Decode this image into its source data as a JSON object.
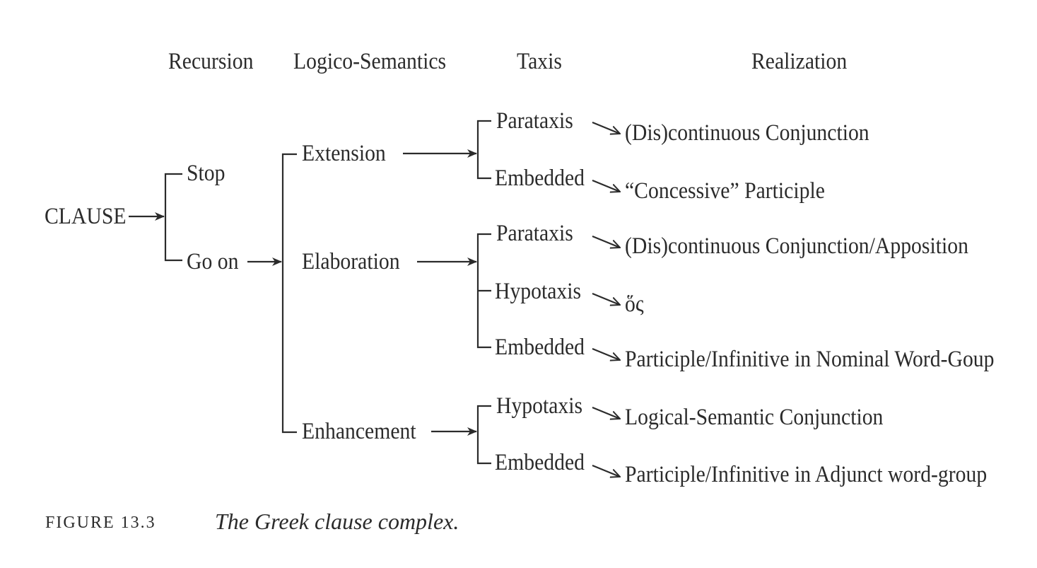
{
  "headers": {
    "recursion": "Recursion",
    "logico_semantics": "Logico-Semantics",
    "taxis": "Taxis",
    "realization": "Realization"
  },
  "nodes": {
    "clause": "CLAUSE",
    "stop": "Stop",
    "go_on": "Go on",
    "extension": "Extension",
    "elaboration": "Elaboration",
    "enhancement": "Enhancement",
    "ext_parataxis": "Parataxis",
    "ext_embedded": "Embedded",
    "elab_parataxis": "Parataxis",
    "elab_hypotaxis": "Hypotaxis",
    "elab_embedded": "Embedded",
    "enh_hypotaxis": "Hypotaxis",
    "enh_embedded": "Embedded"
  },
  "realizations": {
    "ext_parataxis": "(Dis)continuous Conjunction",
    "ext_embedded": "“Concessive” Participle",
    "elab_parataxis": "(Dis)continuous Conjunction/Apposition",
    "elab_hypotaxis": "ὅς",
    "elab_embedded": "Participle/Infinitive in Nominal Word-Goup",
    "enh_hypotaxis": "Logical-Semantic Conjunction",
    "enh_embedded": "Participle/Infinitive in Adjunct word-group"
  },
  "caption": {
    "label": "FIGURE 13.3",
    "text": "The Greek clause complex."
  }
}
